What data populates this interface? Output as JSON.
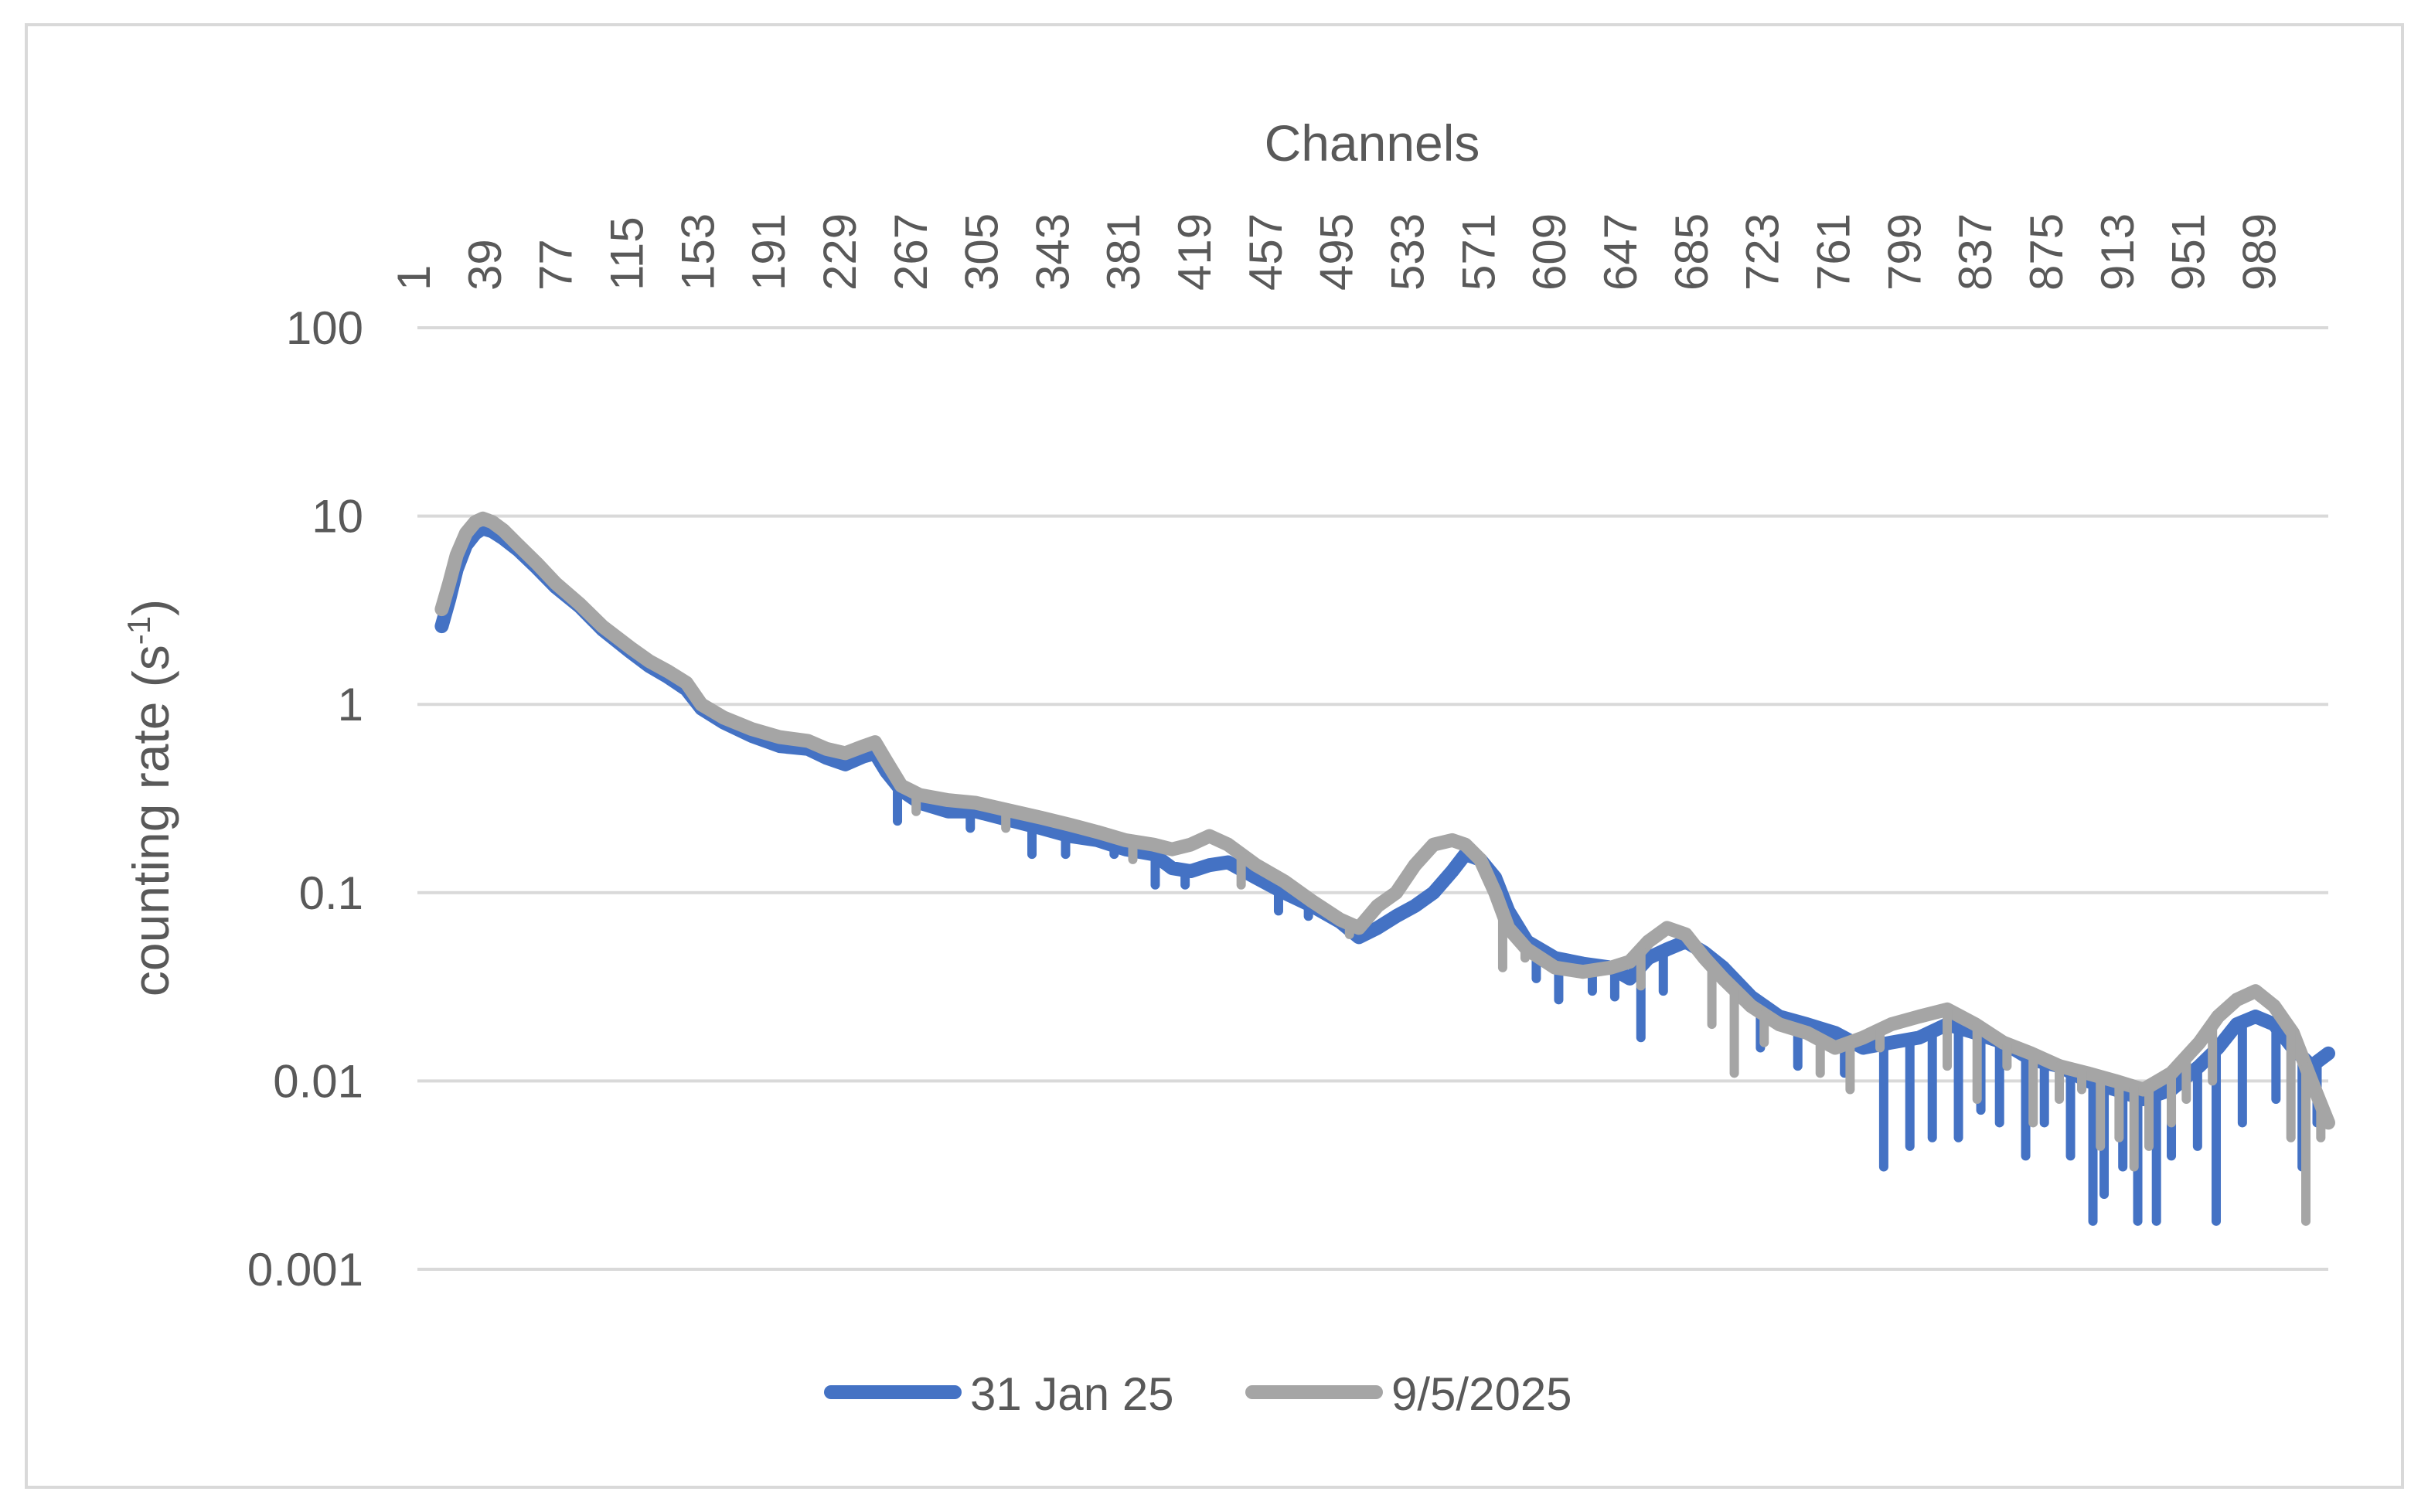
{
  "chart_data": {
    "type": "line",
    "title": "",
    "xlabel": "Channels",
    "ylabel": "counting rate (s",
    "ylabel_superscript": "-1",
    "ylabel_suffix": ")",
    "x_axis_position": "top",
    "x_ticks": [
      "1",
      "39",
      "77",
      "115",
      "153",
      "191",
      "229",
      "267",
      "305",
      "343",
      "381",
      "419",
      "457",
      "495",
      "533",
      "571",
      "609",
      "647",
      "685",
      "723",
      "761",
      "799",
      "837",
      "875",
      "913",
      "951",
      "989"
    ],
    "x_range": [
      1,
      1024
    ],
    "y_scale": "log",
    "y_ticks": [
      "100",
      "10",
      "1",
      "0.1",
      "0.01",
      "0.001"
    ],
    "ylim": [
      0.001,
      100
    ],
    "grid": true,
    "legend_position": "bottom",
    "series": [
      {
        "name": "31 Jan 25",
        "color": "#4472c4",
        "points": [
          [
            14,
            2.6
          ],
          [
            18,
            3.6
          ],
          [
            22,
            5.2
          ],
          [
            27,
            7.0
          ],
          [
            32,
            8.1
          ],
          [
            36,
            8.6
          ],
          [
            41,
            8.3
          ],
          [
            47,
            7.6
          ],
          [
            55,
            6.6
          ],
          [
            65,
            5.3
          ],
          [
            75,
            4.2
          ],
          [
            88,
            3.3
          ],
          [
            100,
            2.5
          ],
          [
            115,
            1.9
          ],
          [
            125,
            1.6
          ],
          [
            135,
            1.4
          ],
          [
            145,
            1.2
          ],
          [
            153,
            0.95
          ],
          [
            165,
            0.8
          ],
          [
            180,
            0.68
          ],
          [
            195,
            0.6
          ],
          [
            210,
            0.58
          ],
          [
            220,
            0.52
          ],
          [
            230,
            0.48
          ],
          [
            240,
            0.53
          ],
          [
            246,
            0.55
          ],
          [
            252,
            0.44
          ],
          [
            260,
            0.35
          ],
          [
            270,
            0.3
          ],
          [
            285,
            0.27
          ],
          [
            300,
            0.27
          ],
          [
            320,
            0.24
          ],
          [
            335,
            0.22
          ],
          [
            350,
            0.2
          ],
          [
            365,
            0.19
          ],
          [
            380,
            0.17
          ],
          [
            395,
            0.16
          ],
          [
            405,
            0.135
          ],
          [
            415,
            0.13
          ],
          [
            425,
            0.14
          ],
          [
            435,
            0.145
          ],
          [
            450,
            0.12
          ],
          [
            465,
            0.1
          ],
          [
            480,
            0.085
          ],
          [
            495,
            0.07
          ],
          [
            505,
            0.058
          ],
          [
            515,
            0.065
          ],
          [
            525,
            0.075
          ],
          [
            535,
            0.085
          ],
          [
            545,
            0.1
          ],
          [
            555,
            0.13
          ],
          [
            562,
            0.16
          ],
          [
            570,
            0.15
          ],
          [
            578,
            0.12
          ],
          [
            585,
            0.08
          ],
          [
            595,
            0.055
          ],
          [
            610,
            0.045
          ],
          [
            625,
            0.042
          ],
          [
            640,
            0.04
          ],
          [
            650,
            0.035
          ],
          [
            660,
            0.045
          ],
          [
            670,
            0.05
          ],
          [
            680,
            0.055
          ],
          [
            690,
            0.048
          ],
          [
            700,
            0.04
          ],
          [
            715,
            0.028
          ],
          [
            730,
            0.022
          ],
          [
            745,
            0.02
          ],
          [
            760,
            0.018
          ],
          [
            775,
            0.015
          ],
          [
            790,
            0.016
          ],
          [
            805,
            0.017
          ],
          [
            820,
            0.02
          ],
          [
            835,
            0.018
          ],
          [
            850,
            0.016
          ],
          [
            865,
            0.013
          ],
          [
            880,
            0.012
          ],
          [
            895,
            0.01
          ],
          [
            910,
            0.009
          ],
          [
            925,
            0.008
          ],
          [
            940,
            0.009
          ],
          [
            955,
            0.012
          ],
          [
            965,
            0.015
          ],
          [
            975,
            0.02
          ],
          [
            985,
            0.022
          ],
          [
            995,
            0.02
          ],
          [
            1005,
            0.015
          ],
          [
            1015,
            0.012
          ],
          [
            1024,
            0.014
          ]
        ],
        "spikes": [
          [
            258,
            0.24
          ],
          [
            297,
            0.22
          ],
          [
            330,
            0.16
          ],
          [
            348,
            0.16
          ],
          [
            374,
            0.16
          ],
          [
            396,
            0.11
          ],
          [
            412,
            0.11
          ],
          [
            462,
            0.08
          ],
          [
            478,
            0.075
          ],
          [
            600,
            0.035
          ],
          [
            612,
            0.027
          ],
          [
            630,
            0.03
          ],
          [
            642,
            0.028
          ],
          [
            656,
            0.017
          ],
          [
            668,
            0.03
          ],
          [
            720,
            0.015
          ],
          [
            740,
            0.012
          ],
          [
            765,
            0.011
          ],
          [
            786,
            0.0035
          ],
          [
            800,
            0.0045
          ],
          [
            812,
            0.005
          ],
          [
            826,
            0.005
          ],
          [
            838,
            0.007
          ],
          [
            848,
            0.006
          ],
          [
            862,
            0.004
          ],
          [
            872,
            0.006
          ],
          [
            886,
            0.004
          ],
          [
            898,
            0.0018
          ],
          [
            904,
            0.0025
          ],
          [
            914,
            0.0035
          ],
          [
            922,
            0.0018
          ],
          [
            932,
            0.0018
          ],
          [
            940,
            0.004
          ],
          [
            954,
            0.0045
          ],
          [
            964,
            0.0018
          ],
          [
            978,
            0.006
          ],
          [
            996,
            0.008
          ],
          [
            1010,
            0.0035
          ],
          [
            1018,
            0.006
          ]
        ]
      },
      {
        "name": "9/5/2025",
        "color": "#a5a5a5",
        "points": [
          [
            14,
            3.2
          ],
          [
            18,
            4.4
          ],
          [
            22,
            6.2
          ],
          [
            27,
            8.1
          ],
          [
            32,
            9.3
          ],
          [
            36,
            9.7
          ],
          [
            41,
            9.3
          ],
          [
            47,
            8.4
          ],
          [
            55,
            7.0
          ],
          [
            65,
            5.6
          ],
          [
            75,
            4.4
          ],
          [
            88,
            3.4
          ],
          [
            100,
            2.6
          ],
          [
            115,
            2.0
          ],
          [
            125,
            1.7
          ],
          [
            135,
            1.5
          ],
          [
            145,
            1.3
          ],
          [
            153,
            1.0
          ],
          [
            165,
            0.85
          ],
          [
            180,
            0.74
          ],
          [
            195,
            0.67
          ],
          [
            210,
            0.64
          ],
          [
            220,
            0.58
          ],
          [
            230,
            0.55
          ],
          [
            240,
            0.6
          ],
          [
            246,
            0.63
          ],
          [
            252,
            0.5
          ],
          [
            260,
            0.37
          ],
          [
            270,
            0.33
          ],
          [
            285,
            0.31
          ],
          [
            300,
            0.3
          ],
          [
            320,
            0.27
          ],
          [
            335,
            0.25
          ],
          [
            350,
            0.23
          ],
          [
            365,
            0.21
          ],
          [
            380,
            0.19
          ],
          [
            395,
            0.18
          ],
          [
            405,
            0.17
          ],
          [
            415,
            0.18
          ],
          [
            425,
            0.2
          ],
          [
            435,
            0.18
          ],
          [
            450,
            0.14
          ],
          [
            465,
            0.115
          ],
          [
            480,
            0.09
          ],
          [
            495,
            0.072
          ],
          [
            505,
            0.065
          ],
          [
            515,
            0.085
          ],
          [
            525,
            0.1
          ],
          [
            535,
            0.14
          ],
          [
            545,
            0.18
          ],
          [
            555,
            0.19
          ],
          [
            562,
            0.18
          ],
          [
            570,
            0.15
          ],
          [
            578,
            0.1
          ],
          [
            585,
            0.065
          ],
          [
            595,
            0.05
          ],
          [
            610,
            0.04
          ],
          [
            625,
            0.038
          ],
          [
            640,
            0.04
          ],
          [
            650,
            0.043
          ],
          [
            660,
            0.055
          ],
          [
            670,
            0.065
          ],
          [
            680,
            0.06
          ],
          [
            690,
            0.045
          ],
          [
            700,
            0.035
          ],
          [
            715,
            0.025
          ],
          [
            730,
            0.02
          ],
          [
            745,
            0.018
          ],
          [
            760,
            0.015
          ],
          [
            775,
            0.017
          ],
          [
            790,
            0.02
          ],
          [
            805,
            0.022
          ],
          [
            820,
            0.024
          ],
          [
            835,
            0.02
          ],
          [
            850,
            0.016
          ],
          [
            865,
            0.014
          ],
          [
            880,
            0.012
          ],
          [
            895,
            0.011
          ],
          [
            910,
            0.01
          ],
          [
            925,
            0.009
          ],
          [
            940,
            0.011
          ],
          [
            955,
            0.016
          ],
          [
            965,
            0.022
          ],
          [
            975,
            0.027
          ],
          [
            985,
            0.03
          ],
          [
            995,
            0.025
          ],
          [
            1005,
            0.018
          ],
          [
            1015,
            0.01
          ],
          [
            1024,
            0.006
          ]
        ],
        "spikes": [
          [
            268,
            0.27
          ],
          [
            316,
            0.22
          ],
          [
            384,
            0.15
          ],
          [
            442,
            0.11
          ],
          [
            500,
            0.06
          ],
          [
            582,
            0.04
          ],
          [
            594,
            0.045
          ],
          [
            656,
            0.032
          ],
          [
            694,
            0.02
          ],
          [
            706,
            0.011
          ],
          [
            722,
            0.016
          ],
          [
            752,
            0.011
          ],
          [
            768,
            0.009
          ],
          [
            784,
            0.015
          ],
          [
            820,
            0.012
          ],
          [
            836,
            0.008
          ],
          [
            852,
            0.012
          ],
          [
            866,
            0.006
          ],
          [
            880,
            0.008
          ],
          [
            892,
            0.009
          ],
          [
            902,
            0.0045
          ],
          [
            912,
            0.005
          ],
          [
            920,
            0.0035
          ],
          [
            928,
            0.0045
          ],
          [
            940,
            0.006
          ],
          [
            948,
            0.008
          ],
          [
            962,
            0.01
          ],
          [
            1004,
            0.005
          ],
          [
            1012,
            0.0018
          ],
          [
            1020,
            0.005
          ]
        ]
      }
    ]
  }
}
